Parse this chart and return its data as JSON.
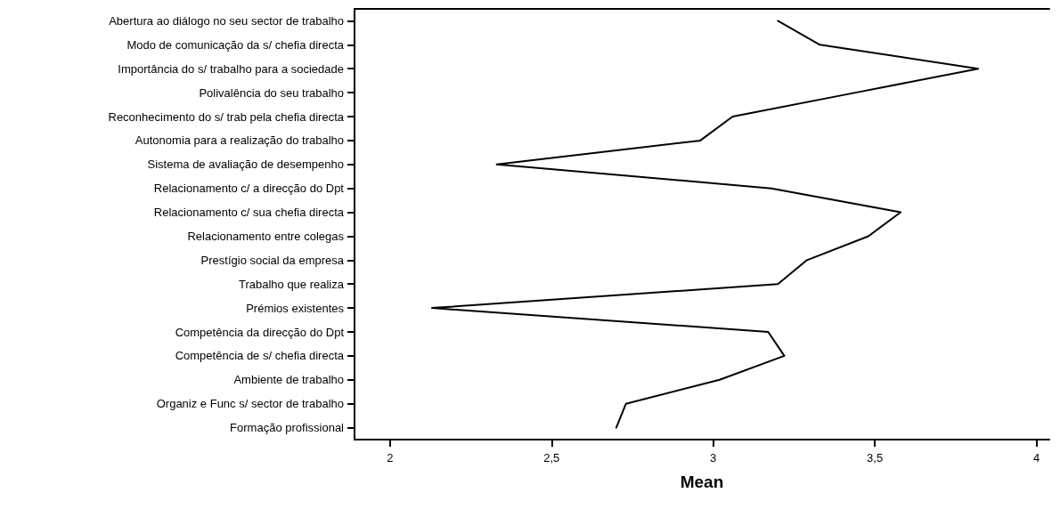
{
  "chart_data": {
    "type": "line",
    "orientation": "horizontal",
    "xlabel": "Mean",
    "categories": [
      "Abertura ao diálogo no seu sector de trabalho",
      "Modo de comunicação da s/ chefia directa",
      "Importância do s/ trabalho para a sociedade",
      "Polivalência do seu trabalho",
      "Reconhecimento do s/ trab pela chefia directa",
      "Autonomia para a realização do trabalho",
      "Sistema de avaliação de desempenho",
      "Relacionamento c/ a direcção do Dpt",
      "Relacionamento c/ sua chefia directa",
      "Relacionamento entre colegas",
      "Prestígio social da empresa",
      "Trabalho que realiza",
      "Prémios existentes",
      "Competência da direcção do Dpt",
      "Competência de s/ chefia directa",
      "Ambiente de trabalho",
      "Organiz e Func s/ sector de trabalho",
      "Formação profissional"
    ],
    "series": [
      {
        "color": "#000000",
        "values": [
          3.2,
          3.33,
          3.82,
          3.44,
          3.06,
          2.96,
          2.33,
          3.18,
          3.58,
          3.48,
          3.29,
          3.2,
          2.13,
          3.17,
          3.22,
          3.02,
          2.73,
          2.7
        ]
      }
    ],
    "xlim": [
      1.89,
      4.04
    ],
    "xticks": [
      {
        "value": 2,
        "label": "2"
      },
      {
        "value": 2.5,
        "label": "2,5"
      },
      {
        "value": 3,
        "label": "3"
      },
      {
        "value": 3.5,
        "label": "3,5"
      },
      {
        "value": 4,
        "label": "4"
      }
    ],
    "grid": false,
    "marker": "none",
    "line_style": "solid"
  }
}
